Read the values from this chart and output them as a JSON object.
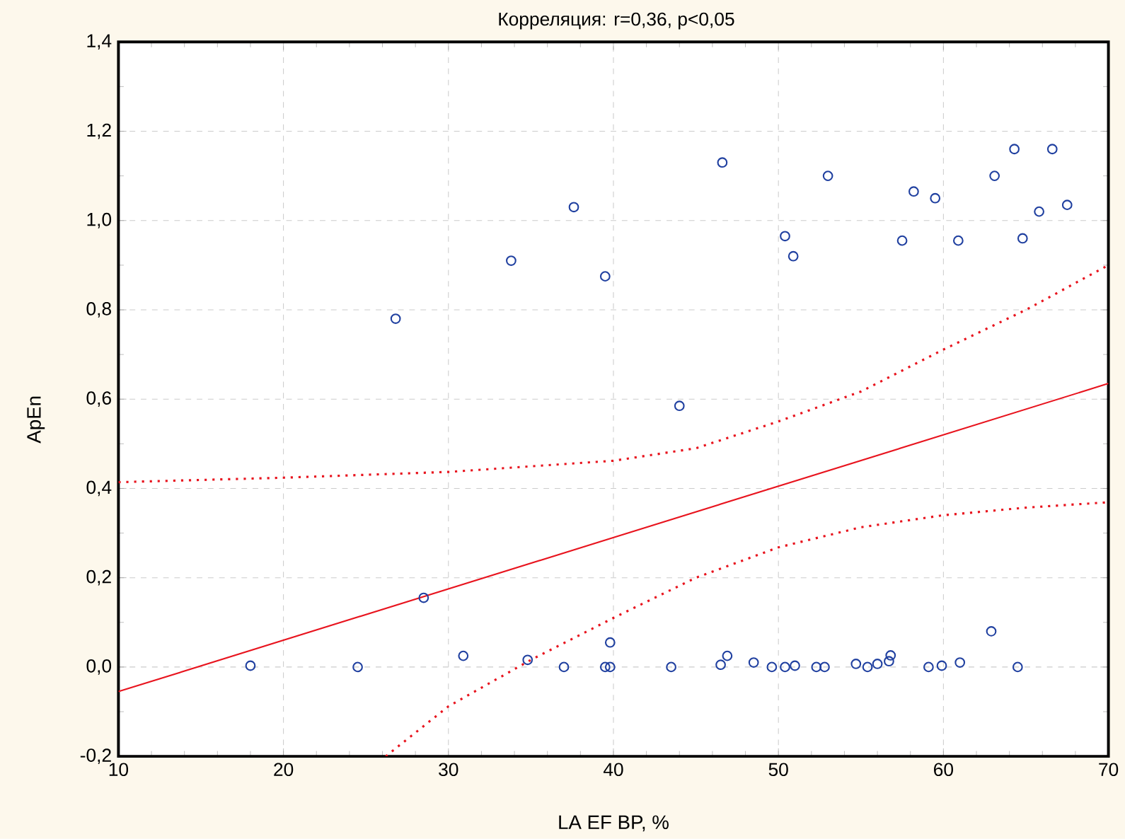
{
  "chart_data": {
    "type": "scatter",
    "title": "Корреляция: r=0,36, p<0,05",
    "xlabel": "LA EF BP, %",
    "ylabel": "ApEn",
    "xlim": [
      10,
      70
    ],
    "xticks": [
      10,
      20,
      30,
      40,
      50,
      60,
      70
    ],
    "ylim": [
      -0.2,
      1.4
    ],
    "yticks": [
      {
        "value": -0.2,
        "label": "-0,2"
      },
      {
        "value": 0,
        "label": "0,0"
      },
      {
        "value": 0.2,
        "label": "0,2"
      },
      {
        "value": 0.4,
        "label": "0,4"
      },
      {
        "value": 0.6,
        "label": "0,6"
      },
      {
        "value": 0.8,
        "label": "0,8"
      },
      {
        "value": 1.0,
        "label": "1,0"
      },
      {
        "value": 1.2,
        "label": "1,2"
      },
      {
        "value": 1.4,
        "label": "1,4"
      }
    ],
    "grid": true,
    "series": [
      {
        "type": "scatter",
        "marker": "circle",
        "color": "#2040a0",
        "x": [
          18.0,
          24.5,
          26.8,
          28.5,
          30.9,
          33.8,
          34.8,
          37.0,
          37.6,
          39.5,
          39.5,
          39.8,
          39.8,
          43.5,
          44.0,
          46.5,
          46.6,
          46.9,
          48.5,
          49.6,
          50.4,
          50.4,
          50.9,
          51.0,
          52.3,
          52.8,
          53.0,
          54.7,
          55.4,
          56.0,
          56.7,
          56.8,
          57.5,
          58.2,
          59.1,
          59.5,
          59.9,
          60.9,
          61.0,
          62.9,
          63.1,
          64.3,
          64.5,
          64.8,
          65.8,
          66.6,
          67.5
        ],
        "values": [
          0.003,
          0.0,
          0.78,
          0.155,
          0.025,
          0.91,
          0.016,
          0.0,
          1.03,
          0.875,
          0.0,
          0.0,
          0.055,
          0.0,
          0.585,
          0.005,
          1.13,
          0.025,
          0.01,
          0.0,
          0.0,
          0.965,
          0.92,
          0.003,
          0.0,
          0.0,
          1.1,
          0.007,
          0.0,
          0.007,
          0.013,
          0.026,
          0.955,
          1.065,
          0.0,
          1.05,
          0.003,
          0.955,
          0.01,
          0.08,
          1.1,
          1.16,
          0.0,
          0.96,
          1.02,
          1.16,
          1.035
        ]
      },
      {
        "type": "line",
        "marker": "none",
        "line_style": "solid",
        "color": "#e8141e",
        "x": [
          10,
          70
        ],
        "values": [
          -0.055,
          0.635
        ]
      },
      {
        "type": "line",
        "marker": "none",
        "line_style": "dotted",
        "color": "#e8141e",
        "x": [
          10,
          20,
          30,
          40,
          45,
          50,
          55,
          60,
          65,
          70
        ],
        "values": [
          0.414,
          0.424,
          0.437,
          0.462,
          0.49,
          0.55,
          0.617,
          0.711,
          0.8,
          0.9
        ]
      },
      {
        "type": "line",
        "marker": "none",
        "line_style": "dotted",
        "color": "#e8141e",
        "x": [
          26.2,
          30,
          35,
          40,
          45,
          50,
          55,
          60,
          65,
          70
        ],
        "values": [
          -0.2,
          -0.088,
          0.016,
          0.11,
          0.2,
          0.268,
          0.313,
          0.34,
          0.357,
          0.369
        ]
      }
    ]
  }
}
